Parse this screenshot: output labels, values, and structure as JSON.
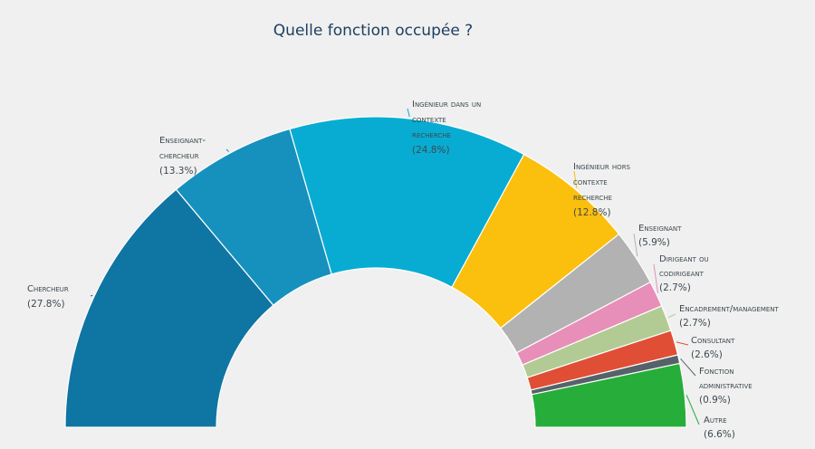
{
  "chart_data": {
    "type": "pie",
    "subtype": "semi-donut",
    "title": "Quelle fonction occupée ?",
    "legend_placement": "labels-next-to-slices",
    "slices": [
      {
        "label_lines": [
          "Chercheur"
        ],
        "value": 27.8,
        "value_text": "(27.8%)",
        "color": "#0f75a2"
      },
      {
        "label_lines": [
          "Enseignant-",
          "chercheur"
        ],
        "value": 13.3,
        "value_text": "(13.3%)",
        "color": "#1691be"
      },
      {
        "label_lines": [
          "Ingénieur dans un",
          "contexte",
          "recherche"
        ],
        "value": 24.8,
        "value_text": "(24.8%)",
        "color": "#08acd2"
      },
      {
        "label_lines": [
          "Ingénieur hors",
          "contexte",
          "recherche"
        ],
        "value": 12.8,
        "value_text": "(12.8%)",
        "color": "#fbbf0d"
      },
      {
        "label_lines": [
          "Enseignant"
        ],
        "value": 5.9,
        "value_text": "(5.9%)",
        "color": "#b3b2b2"
      },
      {
        "label_lines": [
          "Dirigeant ou",
          "codirigeant"
        ],
        "value": 2.7,
        "value_text": "(2.7%)",
        "color": "#e78fb8"
      },
      {
        "label_lines": [
          "Encadrement/management"
        ],
        "value": 2.7,
        "value_text": "(2.7%)",
        "color": "#b2cb94"
      },
      {
        "label_lines": [
          "Consultant"
        ],
        "value": 2.6,
        "value_text": "(2.6%)",
        "color": "#e04e36"
      },
      {
        "label_lines": [
          "Fonction",
          "administrative"
        ],
        "value": 0.9,
        "value_text": "(0.9%)",
        "color": "#56626a"
      },
      {
        "label_lines": [
          "Autre"
        ],
        "value": 6.6,
        "value_text": "(6.6%)",
        "color": "#27ad3a"
      }
    ]
  }
}
